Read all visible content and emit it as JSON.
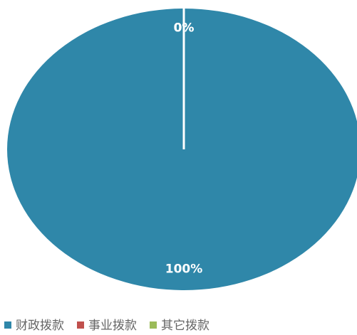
{
  "chart_data": {
    "type": "pie",
    "categories": [
      "财政拨款",
      "事业拨款",
      "其它拨款"
    ],
    "values": [
      100,
      0,
      0
    ],
    "value_labels": [
      "100%",
      "0%",
      "0%"
    ],
    "colors": [
      "#2f87a9",
      "#c0504d",
      "#9bbb59"
    ]
  }
}
